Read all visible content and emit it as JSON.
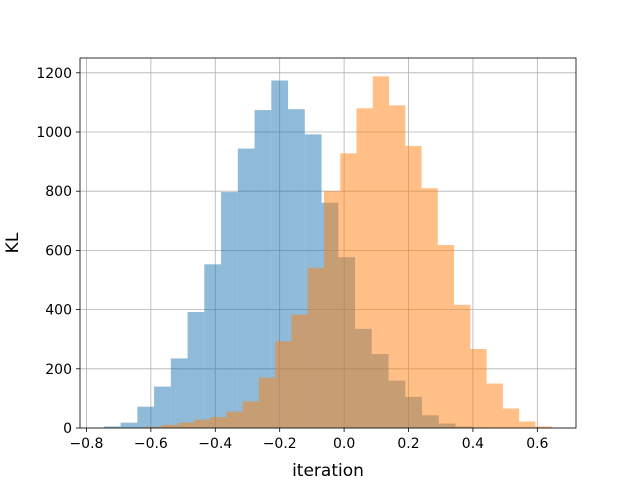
{
  "chart_data": {
    "type": "bar",
    "title": "",
    "xlabel": "iteration",
    "ylabel": "KL",
    "xlim": [
      -0.82,
      0.72
    ],
    "ylim": [
      0,
      1250
    ],
    "xticks": [
      -0.8,
      -0.6,
      -0.4,
      -0.2,
      0.0,
      0.2,
      0.4,
      0.6
    ],
    "xtick_labels": [
      "−0.8",
      "−0.6",
      "−0.4",
      "−0.2",
      "0.0",
      "0.2",
      "0.4",
      "0.6"
    ],
    "yticks": [
      0,
      200,
      400,
      600,
      800,
      1000,
      1200
    ],
    "ytick_labels": [
      "0",
      "200",
      "400",
      "600",
      "800",
      "1000",
      "1200"
    ],
    "grid": true,
    "legend": "none",
    "overlay": true,
    "series": [
      {
        "color": "#1f77b4",
        "opacity": 0.5,
        "bin_width": 0.052,
        "bins_x0": [
          -0.746,
          -0.694,
          -0.642,
          -0.59,
          -0.538,
          -0.486,
          -0.434,
          -0.382,
          -0.33,
          -0.278,
          -0.226,
          -0.174,
          -0.122,
          -0.07,
          -0.018,
          0.034,
          0.086,
          0.138,
          0.19,
          0.242,
          0.294,
          0.346,
          0.398
        ],
        "counts": [
          5,
          18,
          72,
          140,
          235,
          392,
          553,
          797,
          944,
          1074,
          1174,
          1077,
          992,
          761,
          577,
          335,
          250,
          160,
          105,
          43,
          15,
          5,
          2
        ]
      },
      {
        "color": "#ff7f0e",
        "opacity": 0.5,
        "bin_width": 0.0505,
        "bins_x0": [
          -0.618,
          -0.5675,
          -0.517,
          -0.4665,
          -0.416,
          -0.3655,
          -0.315,
          -0.2645,
          -0.214,
          -0.1635,
          -0.113,
          -0.0625,
          -0.012,
          0.0385,
          0.089,
          0.1395,
          0.19,
          0.2405,
          0.291,
          0.3415,
          0.392,
          0.4425,
          0.493,
          0.5435,
          0.594
        ],
        "counts": [
          4,
          10,
          18,
          28,
          37,
          55,
          90,
          170,
          293,
          383,
          541,
          800,
          928,
          1080,
          1188,
          1090,
          953,
          810,
          618,
          416,
          267,
          150,
          66,
          22,
          5
        ]
      }
    ]
  }
}
